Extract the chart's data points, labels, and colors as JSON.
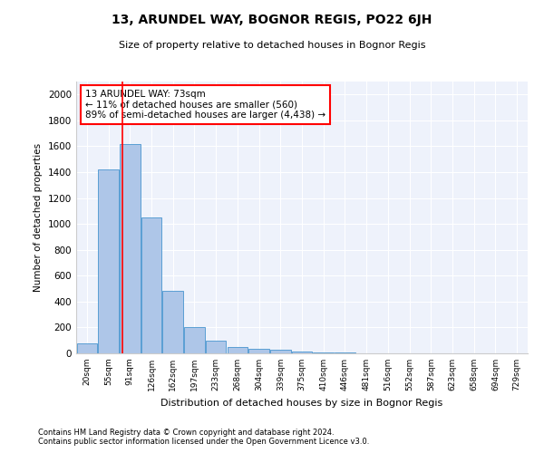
{
  "title": "13, ARUNDEL WAY, BOGNOR REGIS, PO22 6JH",
  "subtitle": "Size of property relative to detached houses in Bognor Regis",
  "xlabel": "Distribution of detached houses by size in Bognor Regis",
  "ylabel": "Number of detached properties",
  "categories": [
    "20sqm",
    "55sqm",
    "91sqm",
    "126sqm",
    "162sqm",
    "197sqm",
    "233sqm",
    "268sqm",
    "304sqm",
    "339sqm",
    "375sqm",
    "410sqm",
    "446sqm",
    "481sqm",
    "516sqm",
    "552sqm",
    "587sqm",
    "623sqm",
    "658sqm",
    "694sqm",
    "729sqm"
  ],
  "values": [
    80,
    1420,
    1620,
    1050,
    480,
    200,
    100,
    50,
    35,
    25,
    15,
    10,
    5,
    3,
    2,
    1,
    1,
    0,
    0,
    0,
    0
  ],
  "bar_color": "#aec6e8",
  "bar_edge_color": "#5a9fd4",
  "red_line_x": 1.65,
  "annotation_text": "13 ARUNDEL WAY: 73sqm\n← 11% of detached houses are smaller (560)\n89% of semi-detached houses are larger (4,438) →",
  "ylim": [
    0,
    2100
  ],
  "yticks": [
    0,
    200,
    400,
    600,
    800,
    1000,
    1200,
    1400,
    1600,
    1800,
    2000
  ],
  "background_color": "#eef2fb",
  "footer_line1": "Contains HM Land Registry data © Crown copyright and database right 2024.",
  "footer_line2": "Contains public sector information licensed under the Open Government Licence v3.0."
}
